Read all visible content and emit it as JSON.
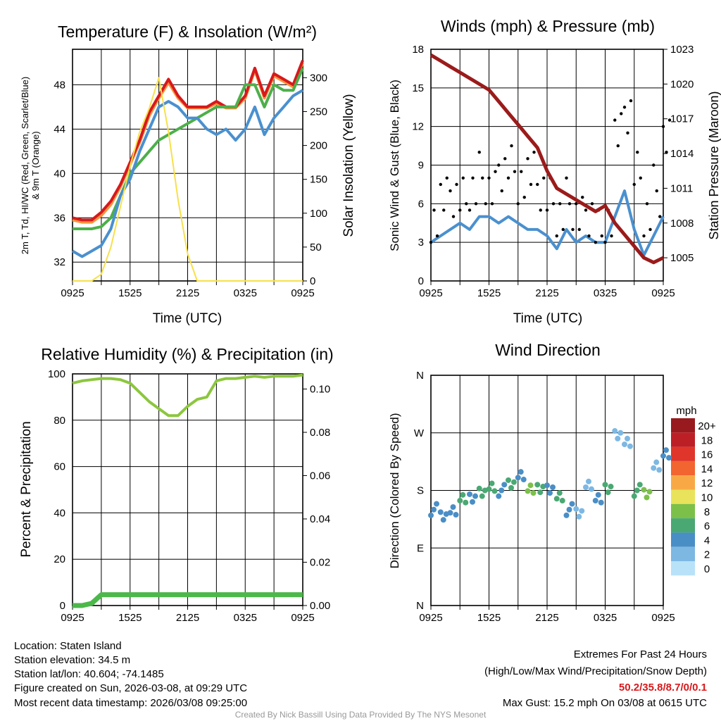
{
  "chart_data": [
    {
      "type": "line",
      "title": "Temperature (F) & Insolation (W/m²)",
      "xlabel": "Time (UTC)",
      "ylabel": "2m T, Td, HI/WC (Red, Green, Scarlet/Blue)",
      "ylabel2": "& 9m T (Orange)",
      "ylabel_right": "Solar Insolation (Yellow)",
      "xticks": [
        "0925",
        "1525",
        "2125",
        "0325",
        "0925"
      ],
      "yticks": [
        32,
        36,
        40,
        44,
        48
      ],
      "yticks_right": [
        0,
        50,
        100,
        150,
        200,
        250,
        300
      ],
      "ylim": [
        30.3,
        51.2
      ],
      "ylim_right": [
        0,
        342
      ],
      "series": [
        {
          "name": "9m T",
          "color": "#f7943c",
          "axis": "left",
          "values": [
            35.8,
            35.6,
            35.6,
            36.2,
            37.2,
            38.8,
            40.8,
            42.8,
            45.2,
            46.8,
            48.2,
            46.8,
            45.9,
            45.9,
            45.9,
            46.3,
            45.9,
            45.9,
            46.8,
            49.3,
            46.8,
            48.8,
            48.3,
            47.8,
            50
          ]
        },
        {
          "name": "2m T",
          "color": "#d7191c",
          "axis": "left",
          "values": [
            36,
            35.8,
            35.8,
            36.5,
            37.5,
            39,
            41,
            43,
            45.5,
            47,
            48.5,
            47,
            46,
            46,
            46,
            46.5,
            46,
            46,
            47,
            49.5,
            47,
            49,
            48.5,
            48,
            50.2
          ]
        },
        {
          "name": "Td",
          "color": "#4daf4a",
          "axis": "left",
          "values": [
            35,
            35,
            35,
            35.2,
            36,
            38,
            40,
            41,
            42,
            43,
            43.5,
            44,
            44.5,
            45,
            45.5,
            46,
            46,
            46,
            48,
            48,
            46,
            48,
            47.5,
            47.5,
            49.5
          ]
        },
        {
          "name": "HI/WC",
          "color": "#4a90cf",
          "axis": "left",
          "values": [
            33,
            32.5,
            33,
            33.5,
            35,
            38,
            39.5,
            42,
            44,
            46,
            46.5,
            46,
            45,
            45,
            44,
            43.5,
            44,
            43,
            44,
            46,
            43.5,
            45,
            46,
            47,
            47.5
          ]
        },
        {
          "name": "Solar Insolation",
          "color": "#f7e04b",
          "axis": "right",
          "values": [
            0,
            0,
            0,
            10,
            50,
            110,
            170,
            220,
            255,
            300,
            220,
            120,
            40,
            0,
            0,
            0,
            0,
            0,
            0,
            0,
            0,
            0,
            0,
            0,
            0
          ]
        }
      ]
    },
    {
      "type": "line",
      "title": "Winds (mph) & Pressure (mb)",
      "xlabel": "Time (UTC)",
      "ylabel": "Sonic Wind & Gust (Blue, Black)",
      "ylabel_right": "Station Pressure (Maroon)",
      "xticks": [
        "0925",
        "1525",
        "2125",
        "0325",
        "0925"
      ],
      "yticks": [
        0,
        3,
        6,
        9,
        12,
        15,
        18
      ],
      "yticks_right": [
        1005,
        1008,
        1011,
        1014,
        1017,
        1020,
        1023
      ],
      "ylim": [
        0,
        18
      ],
      "ylim_right": [
        1003,
        1023
      ],
      "series": [
        {
          "name": "Sonic Wind",
          "color": "#4a90cf",
          "axis": "left",
          "values": [
            3,
            3.5,
            4,
            4.5,
            4,
            5,
            5,
            4.5,
            5,
            4.5,
            4,
            4,
            3.5,
            2.5,
            4,
            3,
            3.5,
            3,
            3,
            5,
            7,
            4,
            2,
            3.5,
            5
          ]
        },
        {
          "name": "Gust",
          "color": "#000000",
          "axis": "left",
          "values": [
            5,
            6,
            6.5,
            6,
            7,
            8,
            7,
            9,
            9,
            8,
            8,
            7,
            6,
            5,
            6,
            5,
            5.5,
            4,
            5,
            11,
            13,
            8,
            5,
            7,
            11
          ]
        },
        {
          "name": "Station Pressure",
          "color": "#9b1b1b",
          "axis": "right",
          "values": [
            1022.5,
            1022,
            1021.5,
            1021,
            1020.5,
            1020,
            1019.5,
            1018.5,
            1017.5,
            1016.5,
            1015.5,
            1014.5,
            1012.5,
            1011,
            1010.5,
            1010,
            1009.5,
            1009,
            1009.5,
            1008,
            1007,
            1006,
            1005,
            1004.6,
            1005
          ]
        }
      ]
    },
    {
      "type": "line",
      "title": "Relative Humidity (%) & Precipitation (in)",
      "ylabel": "Percent & Precipitation",
      "xticks": [
        "0925",
        "1525",
        "2125",
        "0325",
        "0925"
      ],
      "yticks": [
        0,
        20,
        40,
        60,
        80,
        100
      ],
      "yticks_right": [
        "0.00",
        "0.02",
        "0.04",
        "0.06",
        "0.08",
        "0.10"
      ],
      "ylim": [
        0,
        100
      ],
      "ylim_right": [
        0,
        0.107
      ],
      "series": [
        {
          "name": "Relative Humidity",
          "color": "#8cc63f",
          "axis": "left",
          "values": [
            96,
            97,
            97.5,
            98,
            98,
            97.5,
            96,
            92,
            88,
            85,
            82,
            82,
            86,
            89,
            90,
            97,
            98,
            98,
            98.5,
            99,
            98.5,
            99,
            99,
            99,
            99.5
          ]
        },
        {
          "name": "Precipitation",
          "color": "#4cb84a",
          "axis": "right",
          "values": [
            0,
            0,
            0.001,
            0.005,
            0.005,
            0.005,
            0.005,
            0.005,
            0.005,
            0.005,
            0.005,
            0.005,
            0.005,
            0.005,
            0.005,
            0.005,
            0.005,
            0.005,
            0.005,
            0.005,
            0.005,
            0.005,
            0.005,
            0.005,
            0.005
          ]
        }
      ]
    },
    {
      "type": "scatter",
      "title": "Wind Direction",
      "ylabel": "Direction (Colored By Speed)",
      "xticks": [
        "0925",
        "1525",
        "2125",
        "0325",
        "0925"
      ],
      "yticks": [
        "N",
        "E",
        "S",
        "W",
        "N"
      ],
      "ylim": [
        0,
        360
      ],
      "directions": [
        150,
        140,
        145,
        170,
        165,
        180,
        185,
        180,
        190,
        200,
        185,
        180,
        185,
        170,
        150,
        145,
        185,
        170,
        180,
        270,
        255,
        180,
        175,
        215,
        240
      ],
      "speeds": [
        3,
        4,
        3,
        5,
        4,
        6,
        5,
        4,
        6,
        4,
        7,
        5,
        4,
        6,
        3,
        2,
        2,
        3,
        5,
        2,
        2,
        6,
        7,
        2,
        3
      ],
      "legend": {
        "title": "mph",
        "labels": [
          "20+",
          "18",
          "16",
          "14",
          "12",
          "10",
          "8",
          "6",
          "4",
          "2",
          "0"
        ],
        "colors": [
          "#981a1e",
          "#bd1f26",
          "#e0352a",
          "#f26430",
          "#f8a946",
          "#e8e35a",
          "#7cc04a",
          "#4aa872",
          "#4a8ec6",
          "#7db8e3",
          "#b8e2f8"
        ]
      }
    }
  ],
  "info": {
    "location": "Location: Staten Island",
    "elevation": "Station elevation: 34.5 m",
    "latlon": "Station lat/lon: 40.604; -74.1485",
    "created": "Figure created on Sun, 2026-03-08, at 09:29 UTC",
    "recent": "Most recent data timestamp: 2026/03/08 09:25:00"
  },
  "extremes": {
    "title": "Extremes For Past 24 Hours",
    "subtitle": "(High/Low/Max Wind/Precipitation/Snow Depth)",
    "values": "50.2/35.8/8.7/0/0.1",
    "gust": "Max Gust: 15.2 mph On 03/08 at 0615 UTC",
    "accent": "#d7191c"
  },
  "footer": "Created By Nick Bassill Using Data Provided By The NYS Mesonet"
}
